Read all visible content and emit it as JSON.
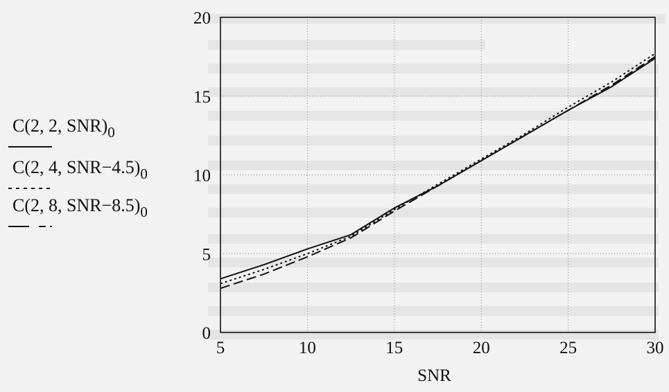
{
  "chart_data": {
    "type": "line",
    "title": "",
    "xlabel": "SNR",
    "ylabel": "",
    "xlim": [
      5,
      30
    ],
    "ylim": [
      0,
      20
    ],
    "x_ticks": [
      "5",
      "10",
      "15",
      "20",
      "25",
      "30"
    ],
    "y_ticks": [
      "0",
      "5",
      "10",
      "15",
      "20"
    ],
    "grid": true,
    "legend": "left",
    "series": [
      {
        "name": "C(2, 2, SNR)",
        "name_sub": "0",
        "style": "solid",
        "x": [
          5,
          7.5,
          10,
          12.5,
          15,
          17.5,
          20,
          22.5,
          25,
          27.5,
          30
        ],
        "y": [
          3.4,
          4.3,
          5.3,
          6.2,
          7.9,
          9.3,
          10.9,
          12.5,
          14.1,
          15.6,
          17.4
        ]
      },
      {
        "name": "C(2, 4, SNR−4.5)",
        "name_sub": "0",
        "style": "dotted",
        "x": [
          5,
          7.5,
          10,
          12.5,
          15,
          17.5,
          20,
          22.5,
          25,
          27.5,
          30
        ],
        "y": [
          3.1,
          4.0,
          5.0,
          6.1,
          7.8,
          9.4,
          11.0,
          12.6,
          14.3,
          15.9,
          17.7
        ]
      },
      {
        "name": "C(2, 8, SNR−8.5)",
        "name_sub": "0",
        "style": "dashed",
        "x": [
          5,
          7.5,
          10,
          12.5,
          15,
          17.5,
          20,
          22.5,
          25,
          27.5,
          30
        ],
        "y": [
          2.8,
          3.7,
          4.8,
          6.0,
          7.7,
          9.3,
          10.9,
          12.5,
          14.1,
          15.7,
          17.5
        ]
      }
    ]
  }
}
